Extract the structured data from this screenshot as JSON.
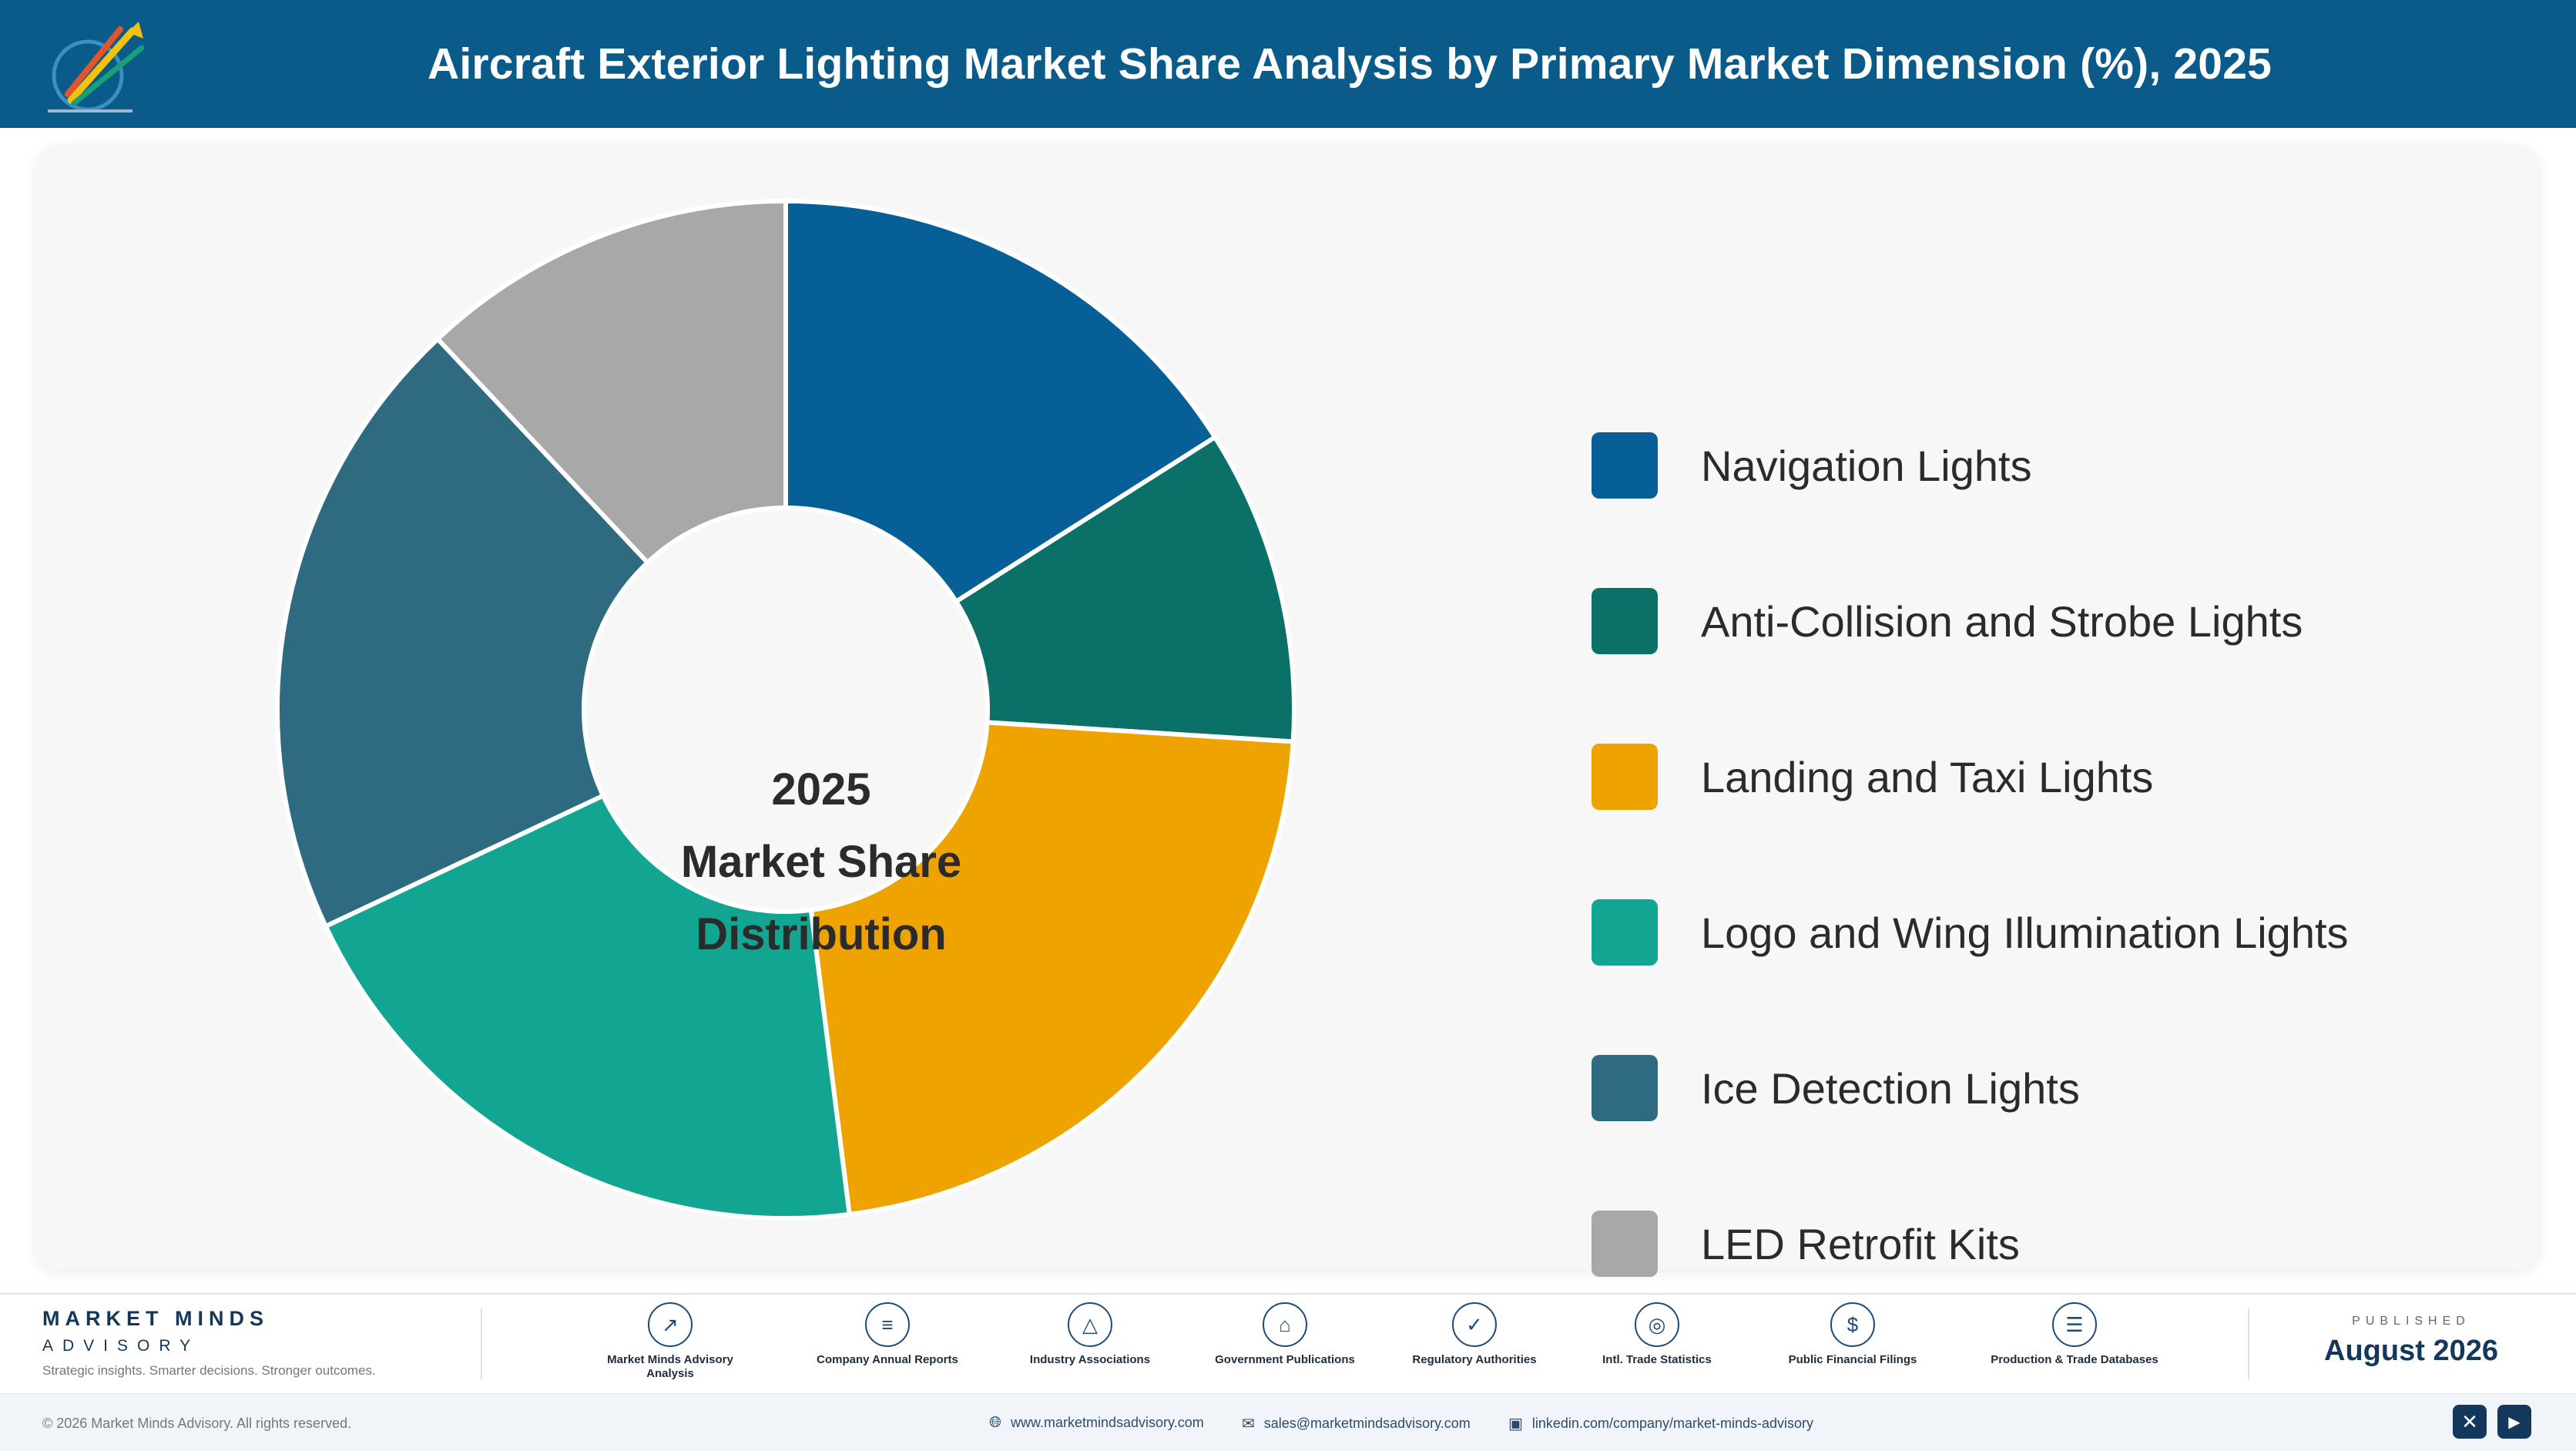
{
  "header": {
    "title": "Aircraft Exterior Lighting Market Share Analysis by Primary Market Dimension (%), 2025",
    "background_color": "#0a5a8a"
  },
  "chart_data": {
    "type": "pie",
    "variant": "donut",
    "title": "Aircraft Exterior Lighting Market Share Analysis by Primary Market Dimension (%), 2025",
    "center_text": [
      "2025",
      "Market Share",
      "Distribution"
    ],
    "categories": [
      "Navigation Lights",
      "Anti-Collision and Strobe Lights",
      "Landing and Taxi Lights",
      "Logo and Wing Illumination Lights",
      "Ice Detection Lights",
      "LED Retrofit Kits"
    ],
    "values": [
      16,
      10,
      22,
      20,
      20,
      12
    ],
    "unit": "%",
    "colors": [
      "#065f96",
      "#0b7068",
      "#efa300",
      "#12a592",
      "#2e6b80",
      "#a8a8a8"
    ],
    "legend_position": "right",
    "start_angle": "top",
    "direction": "clockwise"
  },
  "footer": {
    "brand_name": "MARKET MINDS",
    "brand_sub": "ADVISORY",
    "tagline": "Strategic insights. Smarter decisions. Stronger outcomes.",
    "sources": [
      {
        "label": "Market Minds Advisory Analysis",
        "icon": "chart-line-icon"
      },
      {
        "label": "Company Annual Reports",
        "icon": "document-icon"
      },
      {
        "label": "Industry Associations",
        "icon": "network-icon"
      },
      {
        "label": "Government Publications",
        "icon": "building-icon"
      },
      {
        "label": "Regulatory Authorities",
        "icon": "shield-icon"
      },
      {
        "label": "Intl. Trade Statistics",
        "icon": "globe-icon"
      },
      {
        "label": "Public Financial Filings",
        "icon": "coin-icon"
      },
      {
        "label": "Production & Trade Databases",
        "icon": "database-icon"
      }
    ],
    "published_label": "PUBLISHED",
    "published_date": "August 2026"
  },
  "bottom_bar": {
    "copyright": "© 2026 Market Minds Advisory. All rights reserved.",
    "website": "www.marketmindsadvisory.com",
    "email": "sales@marketmindsadvisory.com",
    "linkedin": "linkedin.com/company/market-minds-advisory"
  }
}
